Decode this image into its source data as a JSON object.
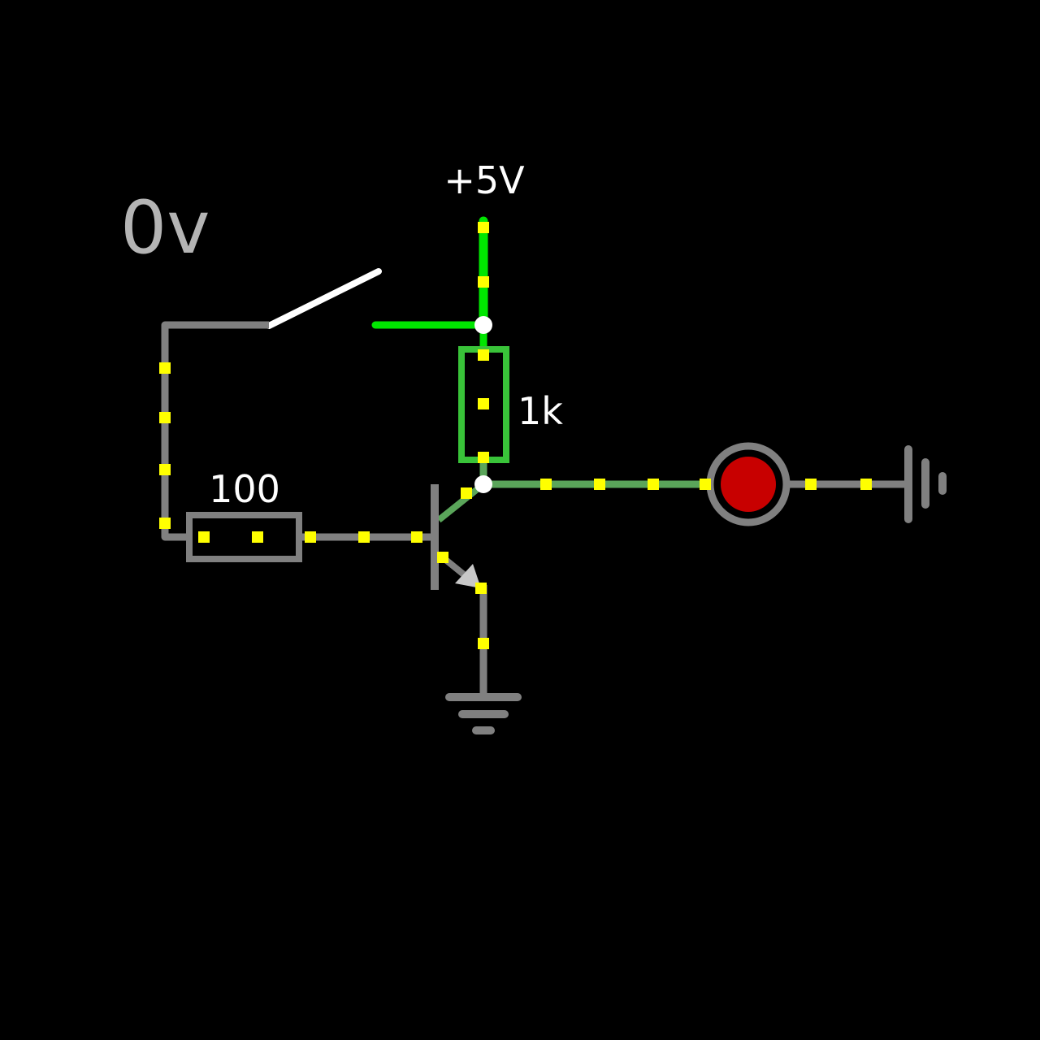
{
  "canvas": {
    "background": "#000000"
  },
  "meter": {
    "text": "0v"
  },
  "labels": {
    "supply": "+5V",
    "pullup_resistor": "1k",
    "base_resistor": "100"
  },
  "colors": {
    "wire_idle": "#808080",
    "wire_high": "#00e600",
    "wire_mid": "#5aa55a",
    "resistor_high": "#39c339",
    "current_dot": "#ffff00",
    "junction": "#ffffff",
    "switch_lever": "#ffffff",
    "meter_text": "#b4b4b4",
    "led_lens": "#c80000",
    "led_ring": "#808080"
  },
  "components": {
    "switch": {
      "state": "open"
    },
    "transistor": {
      "type": "NPN"
    },
    "led": {
      "state": "off"
    }
  }
}
